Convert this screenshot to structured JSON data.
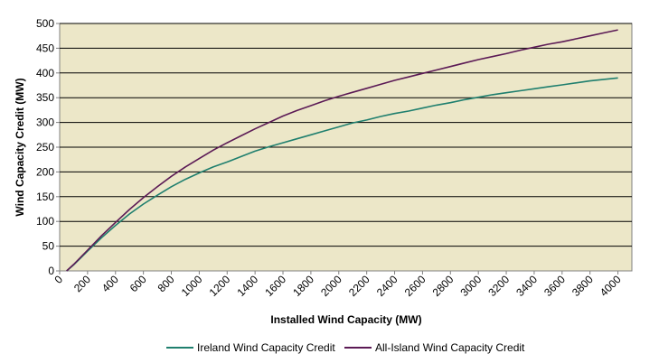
{
  "chart_data": {
    "type": "line",
    "title": "",
    "xlabel": "Installed Wind Capacity (MW)",
    "ylabel": "Wind Capacity Credit (MW)",
    "xlim": [
      0,
      4100
    ],
    "ylim": [
      0,
      500
    ],
    "x_ticks": [
      0,
      200,
      400,
      600,
      800,
      1000,
      1200,
      1400,
      1600,
      1800,
      2000,
      2200,
      2400,
      2600,
      2800,
      3000,
      3200,
      3400,
      3600,
      3800,
      4000
    ],
    "y_ticks": [
      0,
      50,
      100,
      150,
      200,
      250,
      300,
      350,
      400,
      450,
      500
    ],
    "grid": "horizontal",
    "plot_background": "#ece7c8",
    "legend_position": "bottom",
    "x": [
      50,
      100,
      200,
      300,
      400,
      500,
      600,
      700,
      800,
      900,
      1000,
      1100,
      1200,
      1300,
      1400,
      1500,
      1600,
      1700,
      1800,
      1900,
      2000,
      2100,
      2200,
      2300,
      2400,
      2500,
      2600,
      2700,
      2800,
      2900,
      3000,
      3100,
      3200,
      3300,
      3400,
      3500,
      3600,
      3700,
      3800,
      3900,
      4000
    ],
    "series": [
      {
        "name": "Ireland Wind Capacity Credit",
        "color": "#1f7f6e",
        "values": [
          0,
          12,
          40,
          67,
          92,
          115,
          135,
          153,
          170,
          185,
          198,
          210,
          220,
          231,
          242,
          251,
          259,
          267,
          275,
          283,
          291,
          299,
          305,
          312,
          318,
          323,
          329,
          335,
          340,
          346,
          351,
          356,
          360,
          364,
          368,
          372,
          376,
          380,
          384,
          387,
          390
        ]
      },
      {
        "name": "All-Island Wind Capacity Credit",
        "color": "#5b1a55",
        "values": [
          0,
          13,
          42,
          71,
          98,
          124,
          148,
          170,
          191,
          210,
          227,
          244,
          259,
          273,
          287,
          300,
          313,
          324,
          334,
          344,
          353,
          361,
          369,
          377,
          385,
          392,
          399,
          406,
          413,
          420,
          427,
          433,
          439,
          446,
          452,
          458,
          463,
          469,
          475,
          481,
          487
        ]
      }
    ]
  }
}
